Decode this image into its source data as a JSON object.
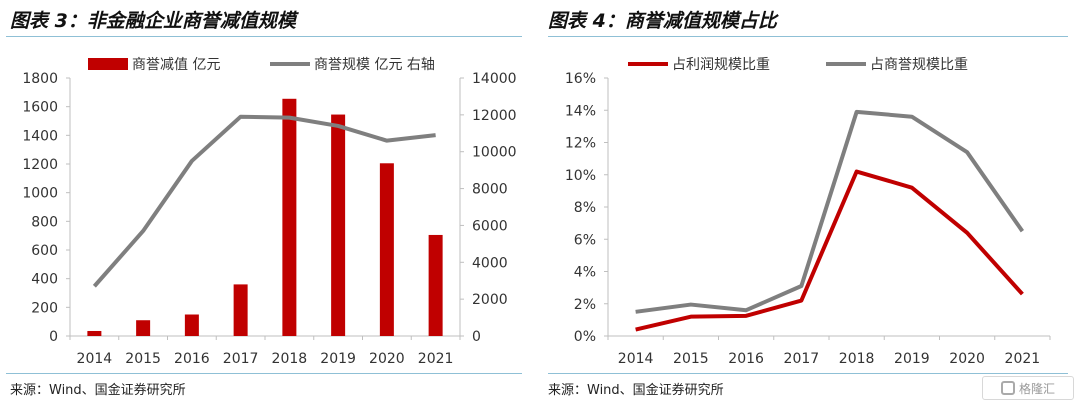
{
  "panels": {
    "left": {
      "title": "图表 3：非金融企业商誉减值规模",
      "source": "来源：Wind、国金证券研究所"
    },
    "right": {
      "title": "图表 4：商誉减值规模占比",
      "source": "来源：Wind、国金证券研究所"
    }
  },
  "watermark": {
    "text": "格隆汇"
  },
  "colors": {
    "red": "#c00000",
    "gray": "#7f7f7f",
    "axis": "#bfbfbf"
  },
  "chart_data": [
    {
      "type": "bar",
      "title": "图表 3：非金融企业商誉减值规模",
      "categories": [
        "2014",
        "2015",
        "2016",
        "2017",
        "2018",
        "2019",
        "2020",
        "2021"
      ],
      "series": [
        {
          "name": "商誉减值 亿元",
          "type": "bar",
          "axis": "left",
          "color": "#c00000",
          "values": [
            35,
            110,
            150,
            360,
            1655,
            1545,
            1205,
            705
          ]
        },
        {
          "name": "商誉规模 亿元 右轴",
          "type": "line",
          "axis": "right",
          "color": "#7f7f7f",
          "values": [
            2700,
            5700,
            9500,
            11900,
            11850,
            11400,
            10600,
            10900
          ]
        }
      ],
      "ylim_left": [
        0,
        1800
      ],
      "yticks_left": [
        0,
        200,
        400,
        600,
        800,
        1000,
        1200,
        1400,
        1600,
        1800
      ],
      "ylim_right": [
        0,
        14000
      ],
      "yticks_right": [
        0,
        2000,
        4000,
        6000,
        8000,
        10000,
        12000,
        14000
      ],
      "legend_position": "top",
      "grid": false
    },
    {
      "type": "line",
      "title": "图表 4：商誉减值规模占比",
      "categories": [
        "2014",
        "2015",
        "2016",
        "2017",
        "2018",
        "2019",
        "2020",
        "2021"
      ],
      "series": [
        {
          "name": "占利润规模比重",
          "color": "#c00000",
          "values": [
            0.4,
            1.2,
            1.25,
            2.2,
            10.2,
            9.2,
            6.4,
            2.6
          ]
        },
        {
          "name": "占商誉规模比重",
          "color": "#7f7f7f",
          "values": [
            1.5,
            1.95,
            1.6,
            3.1,
            13.9,
            13.6,
            11.4,
            6.5
          ]
        }
      ],
      "ylim": [
        0,
        16
      ],
      "yticks": [
        "0%",
        "2%",
        "4%",
        "6%",
        "8%",
        "10%",
        "12%",
        "14%",
        "16%"
      ],
      "legend_position": "top",
      "grid": false
    }
  ]
}
